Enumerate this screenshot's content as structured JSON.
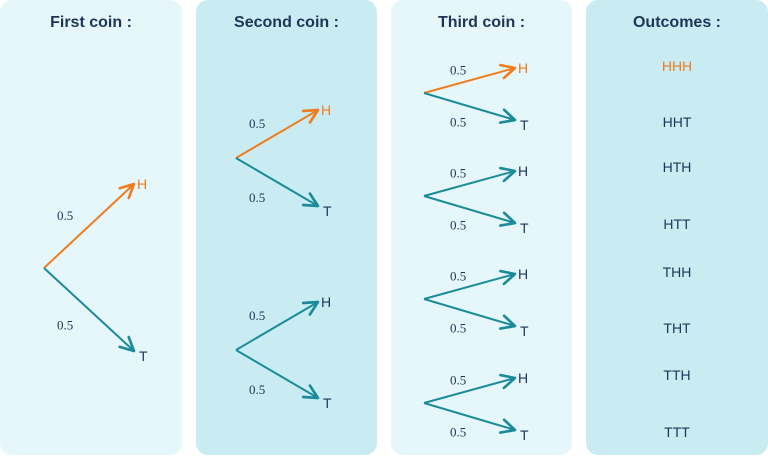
{
  "headers": {
    "first": "First coin :",
    "second": "Second coin :",
    "third": "Third coin :",
    "outcomes": "Outcomes :"
  },
  "colors": {
    "highlight": "#f07c1e",
    "normal": "#1b8b9a",
    "text": "#1d3557"
  },
  "tree": {
    "first_coin": {
      "branches": [
        {
          "label": "H",
          "probability": "0.5",
          "highlighted": true
        },
        {
          "label": "T",
          "probability": "0.5",
          "highlighted": false
        }
      ]
    },
    "second_coin": [
      {
        "parent": "H",
        "branches": [
          {
            "label": "H",
            "probability": "0.5",
            "highlighted": true
          },
          {
            "label": "T",
            "probability": "0.5",
            "highlighted": false
          }
        ]
      },
      {
        "parent": "T",
        "branches": [
          {
            "label": "H",
            "probability": "0.5",
            "highlighted": false
          },
          {
            "label": "T",
            "probability": "0.5",
            "highlighted": false
          }
        ]
      }
    ],
    "third_coin": [
      {
        "parent": "HH",
        "branches": [
          {
            "label": "H",
            "probability": "0.5",
            "highlighted": true
          },
          {
            "label": "T",
            "probability": "0.5",
            "highlighted": false
          }
        ]
      },
      {
        "parent": "HT",
        "branches": [
          {
            "label": "H",
            "probability": "0.5",
            "highlighted": false
          },
          {
            "label": "T",
            "probability": "0.5",
            "highlighted": false
          }
        ]
      },
      {
        "parent": "TH",
        "branches": [
          {
            "label": "H",
            "probability": "0.5",
            "highlighted": false
          },
          {
            "label": "T",
            "probability": "0.5",
            "highlighted": false
          }
        ]
      },
      {
        "parent": "TT",
        "branches": [
          {
            "label": "H",
            "probability": "0.5",
            "highlighted": false
          },
          {
            "label": "T",
            "probability": "0.5",
            "highlighted": false
          }
        ]
      }
    ]
  },
  "outcomes": [
    {
      "text": "HHH",
      "highlighted": true
    },
    {
      "text": "HHT",
      "highlighted": false
    },
    {
      "text": "HTH",
      "highlighted": false
    },
    {
      "text": "HTT",
      "highlighted": false
    },
    {
      "text": "THH",
      "highlighted": false
    },
    {
      "text": "THT",
      "highlighted": false
    },
    {
      "text": "TTH",
      "highlighted": false
    },
    {
      "text": "TTT",
      "highlighted": false
    }
  ]
}
